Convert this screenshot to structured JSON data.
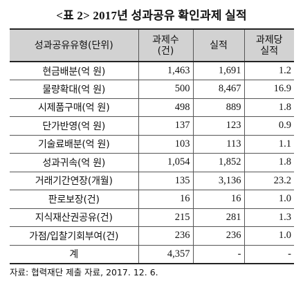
{
  "title": "<표 2> 2017년 성과공유 확인과제 실적",
  "table": {
    "headers": [
      "성과공유유형(단위)",
      "과제수\n(건)",
      "실적",
      "과제당\n실적"
    ],
    "rows": [
      [
        "현금배분(억 원)",
        "1,463",
        "1,691",
        "1.2"
      ],
      [
        "물량확대(억 원)",
        "500",
        "8,467",
        "16.9"
      ],
      [
        "시제품구매(억 원)",
        "498",
        "889",
        "1.8"
      ],
      [
        "단가반영(억 원)",
        "137",
        "123",
        "0.9"
      ],
      [
        "기술료배분(억 원)",
        "103",
        "113",
        "1.1"
      ],
      [
        "성과귀속(억 원)",
        "1,054",
        "1,852",
        "1.8"
      ],
      [
        "거래기간연장(개월)",
        "135",
        "3,136",
        "23.2"
      ],
      [
        "판로보장(건)",
        "16",
        "16",
        "1.0"
      ],
      [
        "지식재산권공유(건)",
        "215",
        "281",
        "1.3"
      ],
      [
        "가점/입찰기회부여(건)",
        "236",
        "236",
        "1.0"
      ],
      [
        "계",
        "4,357",
        "-",
        "-"
      ]
    ]
  },
  "source": "자료: 협력재단 제출 자료, 2017. 12. 6.",
  "colors": {
    "header_bg": "#d2d2d2",
    "rule": "#222222",
    "grid": "#555555"
  }
}
